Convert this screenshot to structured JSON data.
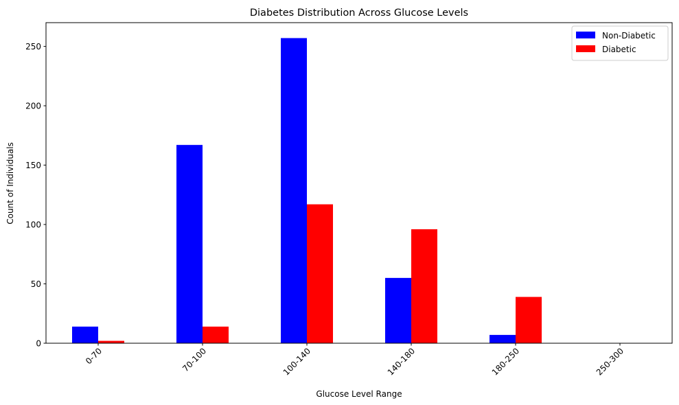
{
  "chart_data": {
    "type": "bar",
    "title": "Diabetes Distribution Across Glucose Levels",
    "xlabel": "Glucose Level Range",
    "ylabel": "Count of Individuals",
    "categories": [
      "0-70",
      "70-100",
      "100-140",
      "140-180",
      "180-250",
      "250-300"
    ],
    "series": [
      {
        "name": "Non-Diabetic",
        "color": "#0000ff",
        "values": [
          14,
          167,
          257,
          55,
          7,
          0
        ]
      },
      {
        "name": "Diabetic",
        "color": "#ff0000",
        "values": [
          2,
          14,
          117,
          96,
          39,
          0
        ]
      }
    ],
    "ylim": [
      0,
      270
    ],
    "yticks": [
      0,
      50,
      100,
      150,
      200,
      250
    ],
    "grid": false,
    "legend": "top-right",
    "xtick_rotation": 45
  }
}
